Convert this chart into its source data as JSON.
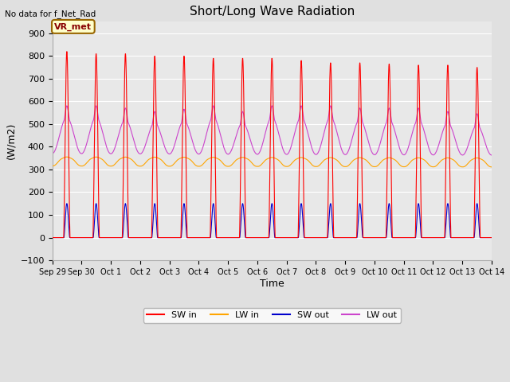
{
  "title": "Short/Long Wave Radiation",
  "ylabel": "(W/m2)",
  "xlabel": "Time",
  "top_left_text": "No data for f_Net_Rad",
  "legend_label_text": "VR_met",
  "ylim": [
    -100,
    950
  ],
  "yticks": [
    -100,
    0,
    100,
    200,
    300,
    400,
    500,
    600,
    700,
    800,
    900
  ],
  "background_color": "#e0e0e0",
  "plot_bg_color": "#e8e8e8",
  "sw_in_color": "#ff0000",
  "lw_in_color": "#ffa500",
  "sw_out_color": "#0000cc",
  "lw_out_color": "#cc44cc",
  "n_days": 15,
  "sw_in_peaks": [
    820,
    810,
    810,
    800,
    800,
    790,
    790,
    790,
    780,
    770,
    770,
    765,
    760,
    760,
    750
  ],
  "lw_out_peaks": [
    580,
    580,
    570,
    555,
    565,
    580,
    555,
    580,
    580,
    580,
    570,
    570,
    570,
    555,
    545
  ],
  "lw_out_base": 370,
  "lw_in_base": 315,
  "lw_in_peak_add": 40,
  "sw_out_peak": 150,
  "tick_labels": [
    "Sep 29",
    "Sep 30",
    "Oct 1",
    "Oct 2",
    "Oct 3",
    "Oct 4",
    "Oct 5",
    "Oct 6",
    "Oct 7",
    "Oct 8",
    "Oct 9",
    "Oct 10",
    "Oct 11",
    "Oct 12",
    "Oct 13",
    "Oct 14"
  ]
}
